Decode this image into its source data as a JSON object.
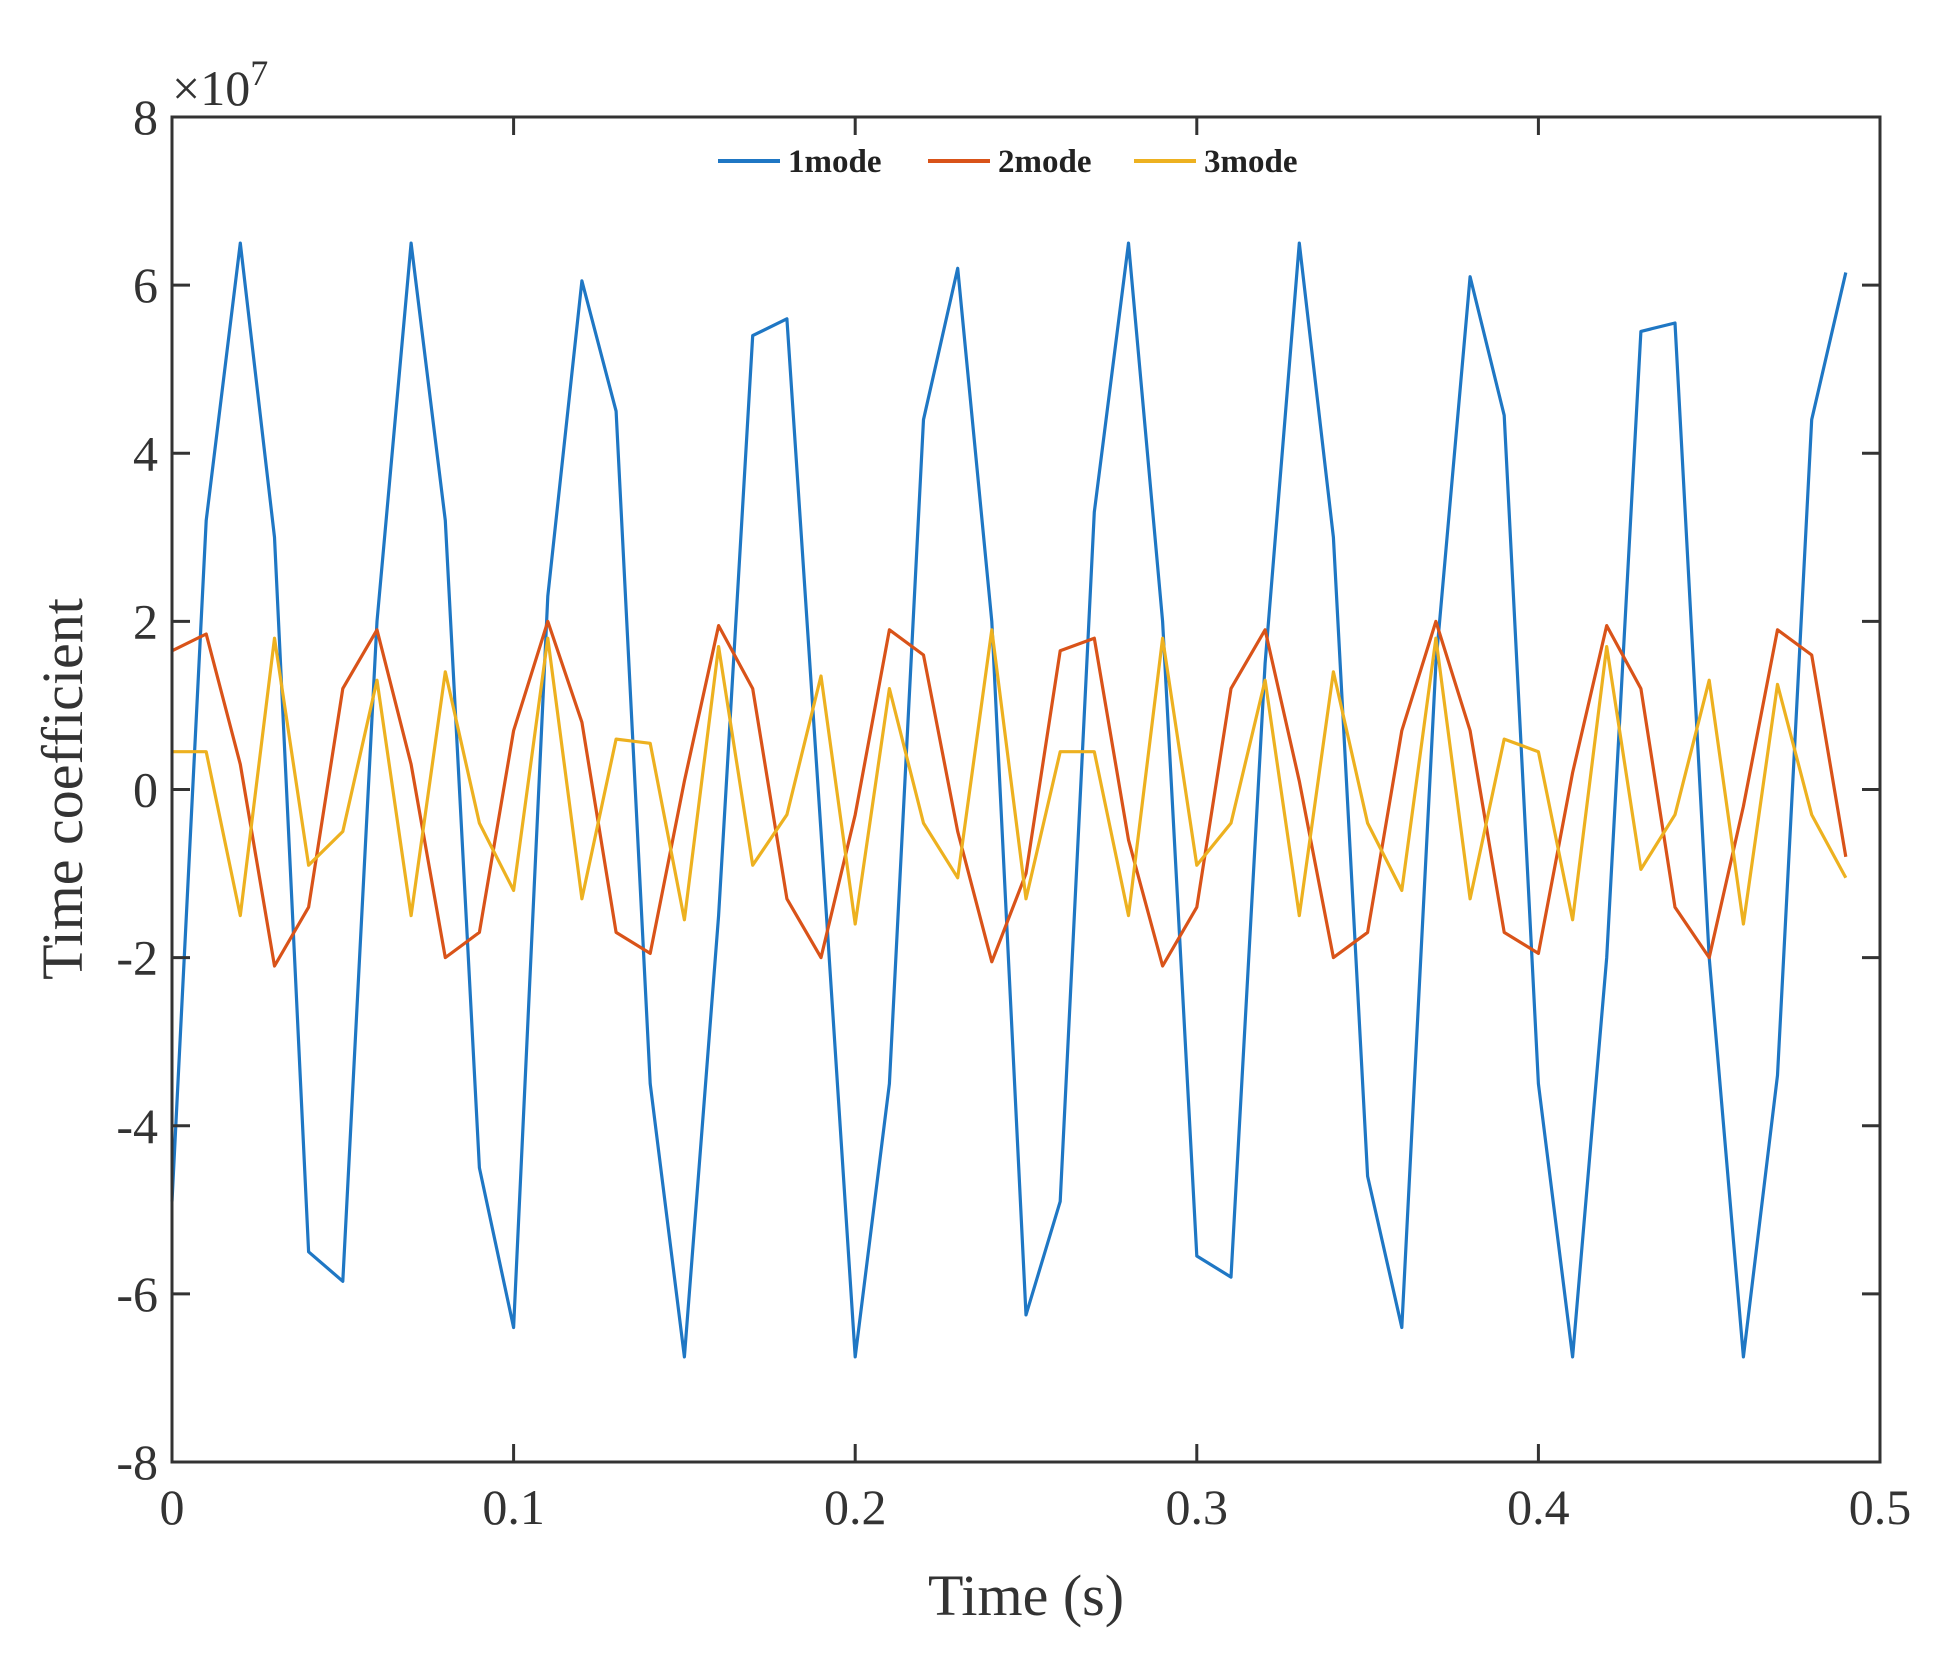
{
  "chart_data": {
    "type": "line",
    "title": "",
    "xlabel": "Time (s)",
    "ylabel": "Time coefficient",
    "y_multiplier": "×10",
    "y_exponent": "7",
    "xlim": [
      0,
      0.5
    ],
    "ylim": [
      -8,
      8
    ],
    "xticks": [
      0,
      0.1,
      0.2,
      0.3,
      0.4,
      0.5
    ],
    "xtick_labels": [
      "0",
      "0.1",
      "0.2",
      "0.3",
      "0.4",
      "0.5"
    ],
    "yticks": [
      -8,
      -6,
      -4,
      -2,
      0,
      2,
      4,
      6,
      8
    ],
    "ytick_labels": [
      "-8",
      "-6",
      "-4",
      "-2",
      "0",
      "2",
      "4",
      "6",
      "8"
    ],
    "grid": false,
    "legend_position": "top-center",
    "x": [
      0,
      0.01,
      0.02,
      0.03,
      0.04,
      0.05,
      0.06,
      0.07,
      0.08,
      0.09,
      0.1,
      0.11,
      0.12,
      0.13,
      0.14,
      0.15,
      0.16,
      0.17,
      0.18,
      0.19,
      0.2,
      0.21,
      0.22,
      0.23,
      0.24,
      0.25,
      0.26,
      0.27,
      0.28,
      0.29,
      0.3,
      0.31,
      0.32,
      0.33,
      0.34,
      0.35,
      0.36,
      0.37,
      0.38,
      0.39,
      0.4,
      0.41,
      0.42,
      0.43,
      0.44,
      0.45,
      0.46,
      0.47,
      0.48,
      0.49
    ],
    "series": [
      {
        "name": "1mode",
        "color": "#1f77c4",
        "values": [
          -4.9,
          3.2,
          6.5,
          3.0,
          -5.5,
          -5.85,
          2.0,
          6.5,
          3.2,
          -4.5,
          -6.4,
          2.3,
          6.05,
          4.5,
          -3.5,
          -6.75,
          -1.5,
          5.4,
          5.6,
          -0.5,
          -6.75,
          -3.5,
          4.4,
          6.2,
          2.0,
          -6.25,
          -4.9,
          3.3,
          6.5,
          2.0,
          -5.55,
          -5.8,
          1.5,
          6.5,
          3.0,
          -4.6,
          -6.4,
          1.5,
          6.1,
          4.45,
          -3.5,
          -6.75,
          -2.0,
          5.45,
          5.55,
          -2.0,
          -6.75,
          -3.4,
          4.4,
          6.15
        ]
      },
      {
        "name": "2mode",
        "color": "#d95319",
        "values": [
          1.65,
          1.85,
          0.3,
          -2.1,
          -1.4,
          1.2,
          1.9,
          0.3,
          -2.0,
          -1.7,
          0.7,
          2.0,
          0.8,
          -1.7,
          -1.95,
          0.1,
          1.95,
          1.2,
          -1.3,
          -2.0,
          -0.3,
          1.9,
          1.6,
          -0.5,
          -2.05,
          -1.0,
          1.65,
          1.8,
          -0.6,
          -2.1,
          -1.4,
          1.2,
          1.9,
          0.1,
          -2.0,
          -1.7,
          0.7,
          2.0,
          0.7,
          -1.7,
          -1.95,
          0.2,
          1.95,
          1.2,
          -1.4,
          -2.0,
          -0.2,
          1.9,
          1.6,
          -0.8
        ]
      },
      {
        "name": "3mode",
        "color": "#edb120",
        "values": [
          0.45,
          0.45,
          -1.5,
          1.8,
          -0.9,
          -0.5,
          1.3,
          -1.5,
          1.4,
          -0.4,
          -1.2,
          1.8,
          -1.3,
          0.6,
          0.55,
          -1.55,
          1.7,
          -0.9,
          -0.3,
          1.35,
          -1.6,
          1.2,
          -0.4,
          -1.05,
          1.9,
          -1.3,
          0.45,
          0.45,
          -1.5,
          1.8,
          -0.9,
          -0.4,
          1.3,
          -1.5,
          1.4,
          -0.4,
          -1.2,
          1.8,
          -1.3,
          0.6,
          0.45,
          -1.55,
          1.7,
          -0.95,
          -0.3,
          1.3,
          -1.6,
          1.25,
          -0.3,
          -1.05
        ]
      }
    ]
  }
}
